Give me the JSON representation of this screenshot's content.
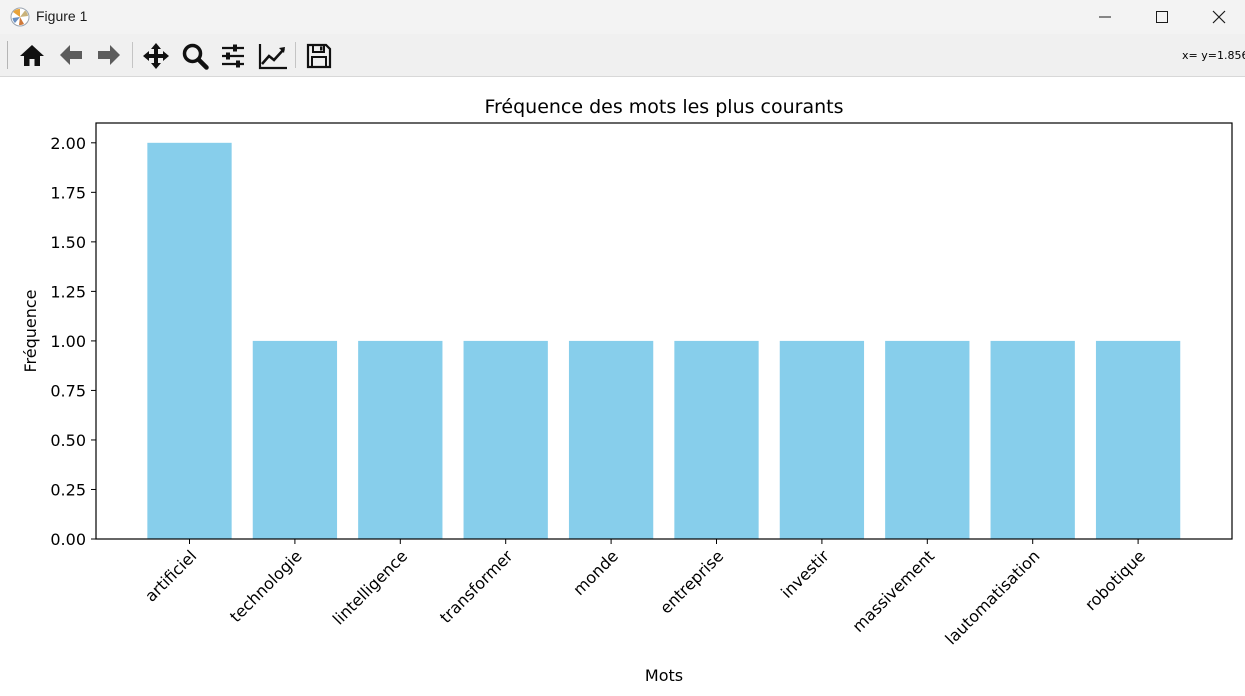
{
  "window": {
    "title": "Figure 1",
    "app_icon": "matplotlib-icon",
    "controls": [
      "minimize-icon",
      "maximize-icon",
      "close-icon"
    ]
  },
  "toolbar": {
    "buttons": [
      {
        "name": "home-button",
        "icon": "home-icon"
      },
      {
        "name": "back-button",
        "icon": "arrow-left-icon"
      },
      {
        "name": "forward-button",
        "icon": "arrow-right-icon"
      },
      {
        "name": "pan-button",
        "icon": "move-icon"
      },
      {
        "name": "zoom-button",
        "icon": "magnifier-icon"
      },
      {
        "name": "subplots-button",
        "icon": "sliders-icon"
      },
      {
        "name": "edit-axes-button",
        "icon": "line-chart-icon"
      },
      {
        "name": "save-button",
        "icon": "floppy-disk-icon"
      }
    ],
    "coordinates": "x= y=1.856"
  },
  "chart_data": {
    "type": "bar",
    "title": "Fréquence des mots les plus courants",
    "xlabel": "Mots",
    "ylabel": "Fréquence",
    "categories": [
      "artificiel",
      "technologie",
      "lintelligence",
      "transformer",
      "monde",
      "entreprise",
      "investir",
      "massivement",
      "lautomatisation",
      "robotique"
    ],
    "values": [
      2,
      1,
      1,
      1,
      1,
      1,
      1,
      1,
      1,
      1
    ],
    "ylim": [
      0,
      2.1
    ],
    "yticks": [
      "0.00",
      "0.25",
      "0.50",
      "0.75",
      "1.00",
      "1.25",
      "1.50",
      "1.75",
      "2.00"
    ],
    "xtick_rotation": 45,
    "bar_color": "#87ceeb",
    "grid": false,
    "legend": "none"
  }
}
